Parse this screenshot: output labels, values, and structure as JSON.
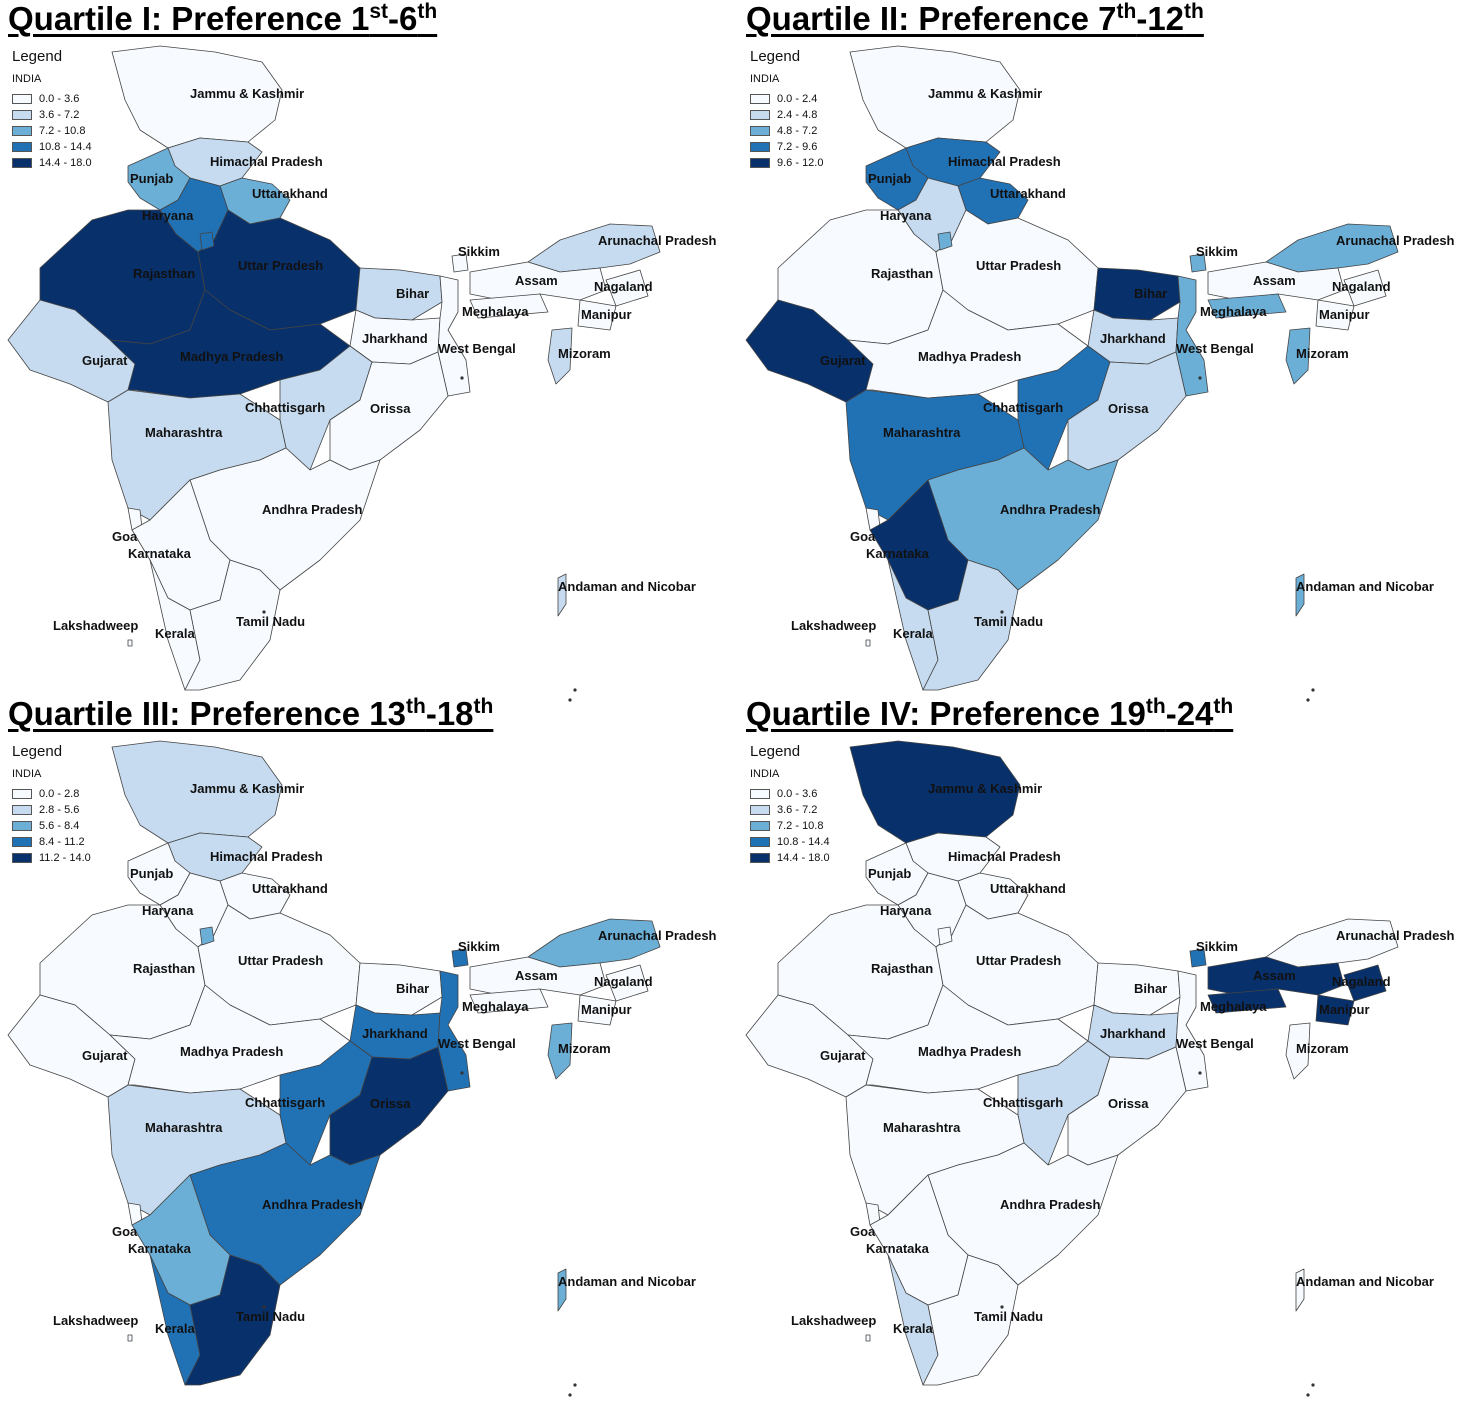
{
  "shared": {
    "legend_title": "Legend",
    "legend_subtitle": "INDIA",
    "colors": [
      "#f7fbff",
      "#c6dbef",
      "#6baed6",
      "#2171b5",
      "#08306b"
    ],
    "state_labels": {
      "jk": "Jammu & Kashmir",
      "hp": "Himachal Pradesh",
      "pb": "Punjab",
      "uk": "Uttarakhand",
      "hr": "Haryana",
      "rj": "Rajasthan",
      "up": "Uttar Pradesh",
      "br": "Bihar",
      "sk": "Sikkim",
      "ar": "Arunachal Pradesh",
      "as": "Assam",
      "nl": "Nagaland",
      "ml": "Meghalaya",
      "mn": "Manipur",
      "jh": "Jharkhand",
      "wb": "West Bengal",
      "mz": "Mizoram",
      "gj": "Gujarat",
      "mp": "Madhya Pradesh",
      "cg": "Chhattisgarh",
      "or": "Orissa",
      "mh": "Maharashtra",
      "ap": "Andhra Pradesh",
      "ga": "Goa",
      "ka": "Karnataka",
      "an": "Andaman and Nicobar",
      "ld": "Lakshadweep",
      "kl": "Kerala",
      "tn": "Tamil Nadu"
    }
  },
  "panels": [
    {
      "title_pre": "Quartile I: Preference 1",
      "sup1": "st",
      "title_mid": "-6",
      "sup2": "th",
      "legend_ranges": [
        "0.0 - 3.6",
        "3.6 - 7.2",
        "7.2 - 10.8",
        "10.8 - 14.4",
        "14.4 - 18.0"
      ],
      "classes": {
        "jk": 0,
        "hp": 1,
        "pb": 2,
        "uk": 2,
        "hr": 3,
        "dl": 3,
        "rj": 4,
        "up": 4,
        "mp": 4,
        "gj": 1,
        "mh": 1,
        "cg": 1,
        "br": 1,
        "jh": 0,
        "wb": 0,
        "or": 0,
        "ap": 0,
        "ka": 0,
        "ga": 0,
        "kl": 0,
        "tn": 0,
        "sk": 0,
        "ar": 1,
        "as": 0,
        "nl": 0,
        "ml": 0,
        "mn": 0,
        "mz": 1,
        "an": 1,
        "ld": 0
      }
    },
    {
      "title_pre": "Quartile II: Preference 7",
      "sup1": "th",
      "title_mid": "-12",
      "sup2": "th",
      "legend_ranges": [
        "0.0 - 2.4",
        "2.4 - 4.8",
        "4.8 - 7.2",
        "7.2 - 9.6",
        "9.6 - 12.0"
      ],
      "classes": {
        "jk": 0,
        "hp": 3,
        "pb": 3,
        "uk": 3,
        "hr": 1,
        "dl": 2,
        "rj": 0,
        "up": 0,
        "mp": 0,
        "gj": 4,
        "mh": 3,
        "cg": 3,
        "br": 4,
        "jh": 1,
        "wb": 2,
        "or": 1,
        "ap": 2,
        "ka": 4,
        "ga": 0,
        "kl": 1,
        "tn": 1,
        "sk": 2,
        "ar": 2,
        "as": 0,
        "nl": 0,
        "ml": 2,
        "mn": 0,
        "mz": 2,
        "an": 2,
        "ld": 0
      }
    },
    {
      "title_pre": "Quartile III: Preference 13",
      "sup1": "th",
      "title_mid": "-18",
      "sup2": "th",
      "legend_ranges": [
        "0.0 - 2.8",
        "2.8 - 5.6",
        "5.6 - 8.4",
        "8.4 - 11.2",
        "11.2 - 14.0"
      ],
      "classes": {
        "jk": 1,
        "hp": 1,
        "pb": 0,
        "uk": 0,
        "hr": 0,
        "dl": 2,
        "rj": 0,
        "up": 0,
        "mp": 0,
        "gj": 0,
        "mh": 1,
        "cg": 3,
        "br": 0,
        "jh": 3,
        "wb": 3,
        "or": 4,
        "ap": 3,
        "ka": 2,
        "ga": 0,
        "kl": 3,
        "tn": 4,
        "sk": 3,
        "ar": 2,
        "as": 0,
        "nl": 0,
        "ml": 0,
        "mn": 0,
        "mz": 2,
        "an": 2,
        "ld": 0
      }
    },
    {
      "title_pre": "Quartile IV: Preference 19",
      "sup1": "th",
      "title_mid": "-24",
      "sup2": "th",
      "legend_ranges": [
        "0.0 - 3.6",
        "3.6 - 7.2",
        "7.2 - 10.8",
        "10.8 - 14.4",
        "14.4 - 18.0"
      ],
      "classes": {
        "jk": 4,
        "hp": 0,
        "pb": 0,
        "uk": 0,
        "hr": 0,
        "dl": 0,
        "rj": 0,
        "up": 0,
        "mp": 0,
        "gj": 0,
        "mh": 0,
        "cg": 1,
        "br": 0,
        "jh": 1,
        "wb": 0,
        "or": 0,
        "ap": 0,
        "ka": 0,
        "ga": 0,
        "kl": 1,
        "tn": 0,
        "sk": 3,
        "ar": 0,
        "as": 4,
        "nl": 4,
        "ml": 4,
        "mn": 4,
        "mz": 0,
        "an": 0,
        "ld": 0
      }
    }
  ]
}
